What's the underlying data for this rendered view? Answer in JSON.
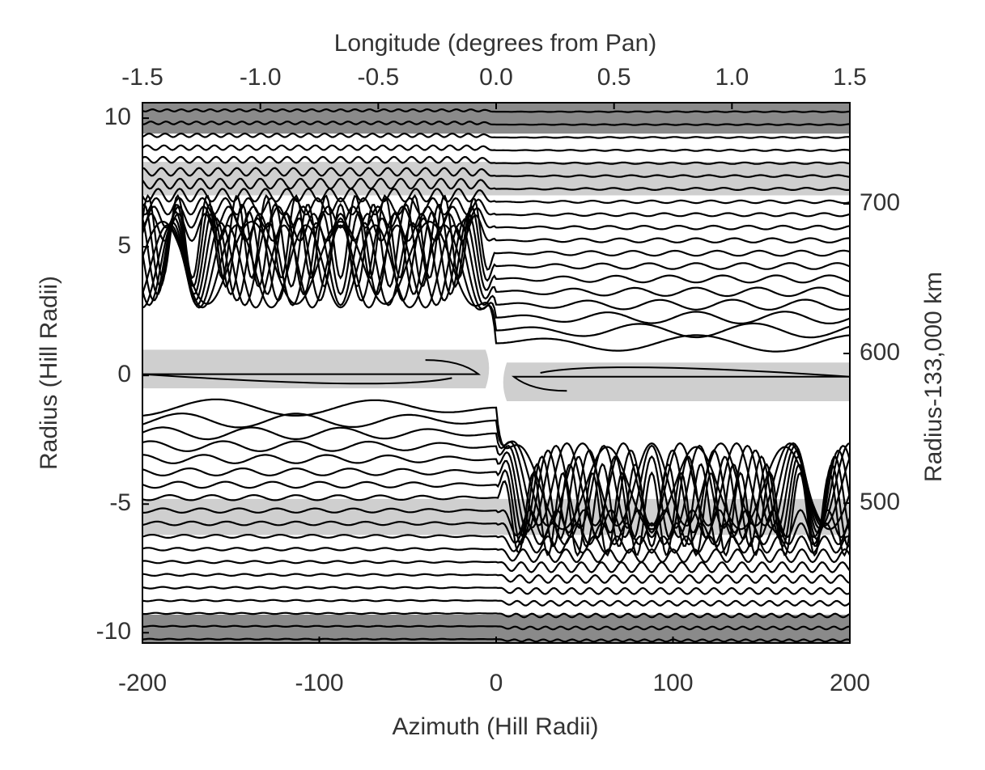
{
  "chart_data": {
    "type": "streamline",
    "xlabel": "Azimuth (Hill Radii)",
    "x2label": "Longitude (degrees from Pan)",
    "ylabel": "Radius (Hill Radii)",
    "y2label": "Radius-133,000 km",
    "xlim": [
      -200,
      200
    ],
    "xticks": [
      -200,
      -100,
      0,
      100,
      200
    ],
    "x2lim": [
      -1.5,
      1.5
    ],
    "x2ticks": [
      -1.5,
      {
        "value": -1,
        "label": "-1.0"
      },
      -0.5,
      {
        "value": 0,
        "label": "0.0"
      },
      0.5,
      {
        "value": 1,
        "label": "1.0"
      },
      1.5
    ],
    "ylim": [
      -10.4,
      10.6
    ],
    "yticks": [
      -10,
      -5,
      0,
      5,
      10
    ],
    "y2lim": [
      406.5,
      767.6
    ],
    "y2ticks": [
      500,
      600,
      700
    ]
  }
}
